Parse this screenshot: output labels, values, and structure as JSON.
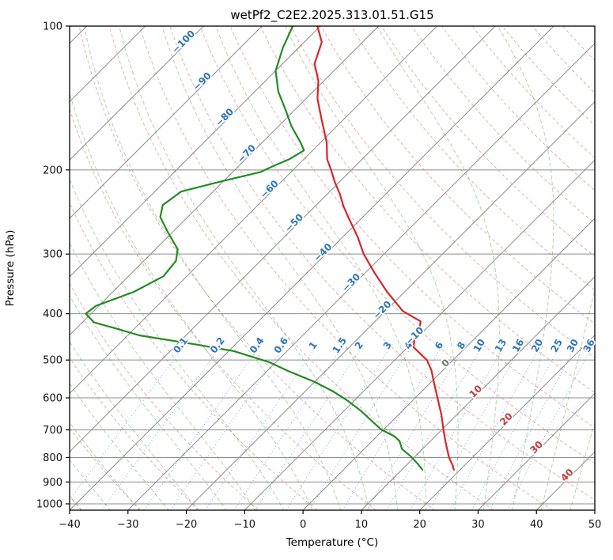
{
  "title": "wetPf2_C2E2.2025.313.01.51.G15",
  "axes": {
    "x_label": "Temperature (°C)",
    "y_label": "Pressure (hPa)"
  },
  "colors": {
    "temperature": "#d62728",
    "dewpoint": "#228b22",
    "isotherm": "#8c8c8c",
    "gridline": "#8c8c8c",
    "dry_adiabat": "rgba(205,88,78,0.48)",
    "moist_adiabat": "rgba(62,142,62,0.40)",
    "mixing_ratio": "rgba(55,115,180,0.60)",
    "mixing_label": "#2f74b8",
    "label_neg": "#2f74b8",
    "label_zero": "#777777",
    "label_pos": "#c23b3b",
    "border": "#000000"
  },
  "chart_data": {
    "type": "line",
    "subtype": "skew-t-log-p",
    "title": "wetPf2_C2E2.2025.313.01.51.G15",
    "xlabel": "Temperature (°C)",
    "ylabel": "Pressure (hPa)",
    "x_axis": {
      "min": -40,
      "max": 50,
      "ticks": [
        -40,
        -30,
        -20,
        -10,
        0,
        10,
        20,
        30,
        40,
        50
      ]
    },
    "y_axis": {
      "scale": "log",
      "ticks": [
        100,
        200,
        300,
        400,
        500,
        600,
        700,
        800,
        900,
        1000
      ]
    },
    "skew_deg": 45,
    "grid": true,
    "isotherms": {
      "min": -120,
      "max": 50,
      "step": 10
    },
    "isotherm_labels": [
      {
        "text": "−100",
        "t": -100,
        "p": 109
      },
      {
        "text": "−90",
        "t": -90,
        "p": 132
      },
      {
        "text": "−80",
        "t": -80,
        "p": 157
      },
      {
        "text": "−70",
        "t": -70,
        "p": 187
      },
      {
        "text": "−60",
        "t": -60,
        "p": 222
      },
      {
        "text": "−50",
        "t": -50,
        "p": 261
      },
      {
        "text": "−40",
        "t": -40,
        "p": 301
      },
      {
        "text": "−30",
        "t": -30,
        "p": 348
      },
      {
        "text": "−20",
        "t": -20,
        "p": 397
      },
      {
        "text": "−10",
        "t": -10,
        "p": 450
      },
      {
        "text": "0",
        "t": 0,
        "p": 513
      },
      {
        "text": "10",
        "t": 10,
        "p": 588
      },
      {
        "text": "20",
        "t": 20,
        "p": 672
      },
      {
        "text": "30",
        "t": 30,
        "p": 770
      },
      {
        "text": "40",
        "t": 40,
        "p": 880
      }
    ],
    "dry_adiabats": {
      "min_theta_c": -40,
      "max_theta_c": 190,
      "step": 10
    },
    "moist_adiabats": {
      "min_t0_c": -40,
      "max_t0_c": 45,
      "step": 5
    },
    "mixing_ratios": {
      "values": [
        0.1,
        0.2,
        0.4,
        0.6,
        1,
        1.5,
        2,
        3,
        4,
        6,
        8,
        10,
        13,
        16,
        20,
        25,
        30,
        36
      ],
      "label_pressure": 470,
      "top_pressure": 455
    },
    "series": [
      {
        "name": "temperature",
        "color": "#d62728",
        "points": [
          [
            100,
            -80.5
          ],
          [
            108,
            -77.0
          ],
          [
            120,
            -74.5
          ],
          [
            130,
            -71.0
          ],
          [
            142,
            -68.0
          ],
          [
            156,
            -64.0
          ],
          [
            175,
            -59.0
          ],
          [
            190,
            -56.0
          ],
          [
            200,
            -53.5
          ],
          [
            212,
            -50.8
          ],
          [
            224,
            -48.0
          ],
          [
            238,
            -45.2
          ],
          [
            251,
            -42.5
          ],
          [
            276,
            -37.5
          ],
          [
            300,
            -33.5
          ],
          [
            328,
            -28.5
          ],
          [
            360,
            -23.0
          ],
          [
            395,
            -17.0
          ],
          [
            415,
            -12.2
          ],
          [
            432,
            -11.0
          ],
          [
            448,
            -10.5
          ],
          [
            470,
            -9.0
          ],
          [
            500,
            -4.5
          ],
          [
            525,
            -2.0
          ],
          [
            550,
            0.0
          ],
          [
            600,
            3.8
          ],
          [
            650,
            7.3
          ],
          [
            700,
            10.3
          ],
          [
            745,
            12.9
          ],
          [
            800,
            16.0
          ],
          [
            830,
            17.9
          ],
          [
            848,
            18.9
          ]
        ]
      },
      {
        "name": "dewpoint",
        "color": "#228b22",
        "points": [
          [
            100,
            -84.7
          ],
          [
            111,
            -82.7
          ],
          [
            124,
            -80.0
          ],
          [
            137,
            -76.0
          ],
          [
            150,
            -71.5
          ],
          [
            162,
            -67.8
          ],
          [
            175,
            -63.5
          ],
          [
            182,
            -61.5
          ],
          [
            190,
            -62.5
          ],
          [
            196,
            -64.0
          ],
          [
            202,
            -65.2
          ],
          [
            211,
            -70.2
          ],
          [
            222,
            -75.5
          ],
          [
            237,
            -76.3
          ],
          [
            251,
            -74.7
          ],
          [
            271,
            -70.6
          ],
          [
            293,
            -66.2
          ],
          [
            310,
            -64.5
          ],
          [
            334,
            -64.0
          ],
          [
            360,
            -66.4
          ],
          [
            385,
            -70.5
          ],
          [
            400,
            -70.9
          ],
          [
            417,
            -68.0
          ],
          [
            430,
            -63.0
          ],
          [
            444,
            -58.0
          ],
          [
            465,
            -46.2
          ],
          [
            479,
            -39.1
          ],
          [
            505,
            -31.2
          ],
          [
            528,
            -26.2
          ],
          [
            554,
            -20.3
          ],
          [
            581,
            -15.3
          ],
          [
            609,
            -11.0
          ],
          [
            638,
            -7.2
          ],
          [
            668,
            -3.8
          ],
          [
            700,
            -0.3
          ],
          [
            722,
            3.0
          ],
          [
            739,
            4.7
          ],
          [
            768,
            6.5
          ],
          [
            796,
            9.3
          ],
          [
            822,
            11.5
          ],
          [
            848,
            13.5
          ]
        ]
      }
    ]
  }
}
